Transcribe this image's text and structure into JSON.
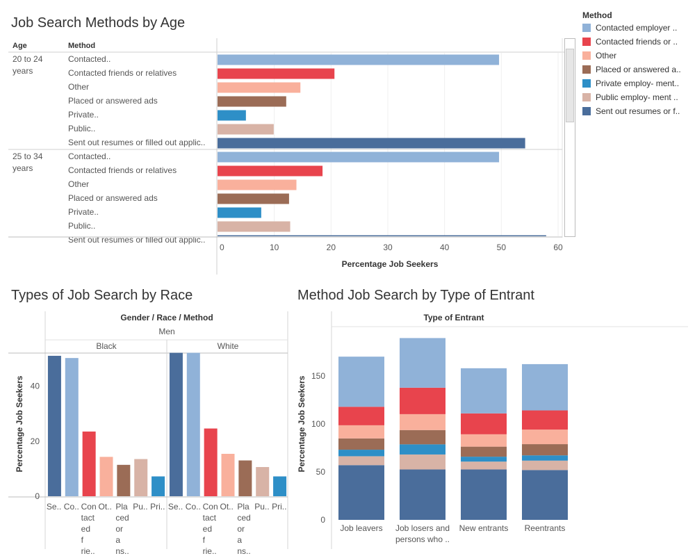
{
  "dashboard": {
    "titles": {
      "age_chart": "Job Search Methods by Age",
      "race_chart": "Types of Job Search by Race",
      "entrant_chart": "Method Job Search by Type of Entrant"
    }
  },
  "legend": {
    "title": "Method",
    "items": [
      {
        "label": "Contacted employer ..",
        "color": "#90b2d8"
      },
      {
        "label": "Contacted friends or ..",
        "color": "#e8444d"
      },
      {
        "label": "Other",
        "color": "#f9b09c"
      },
      {
        "label": "Placed or answered a..",
        "color": "#9b6c56"
      },
      {
        "label": "Private employ- ment..",
        "color": "#2e8fc7"
      },
      {
        "label": "Public employ- ment ..",
        "color": "#d8b3a6"
      },
      {
        "label": "Sent out resumes or f..",
        "color": "#4a6d9b"
      }
    ]
  },
  "chart_data": [
    {
      "type": "bar",
      "orientation": "horizontal",
      "title": "Job Search Methods by Age",
      "column_headers": {
        "age": "Age",
        "method": "Method"
      },
      "xlabel": "Percentage Job Seekers",
      "xlim": [
        0,
        60
      ],
      "xticks": [
        0,
        10,
        20,
        30,
        40,
        50,
        60
      ],
      "groups": [
        {
          "label_line1": "20 to 24",
          "label_line2": "years",
          "rows": [
            {
              "method": "Contacted..",
              "value": 49.6,
              "color": "#90b2d8"
            },
            {
              "method": "Contacted friends or relatives",
              "value": 20.6,
              "color": "#e8444d"
            },
            {
              "method": "Other",
              "value": 14.6,
              "color": "#f9b09c"
            },
            {
              "method": "Placed or answered ads",
              "value": 12.1,
              "color": "#9b6c56"
            },
            {
              "method": "Private..",
              "value": 5.0,
              "color": "#2e8fc7"
            },
            {
              "method": "Public..",
              "value": 9.9,
              "color": "#d8b3a6"
            },
            {
              "method": "Sent out resumes or filled out applic..",
              "value": 54.2,
              "color": "#4a6d9b"
            }
          ]
        },
        {
          "label_line1": "25 to 34",
          "label_line2": "years",
          "rows": [
            {
              "method": "Contacted..",
              "value": 49.6,
              "color": "#90b2d8"
            },
            {
              "method": "Contacted friends or relatives",
              "value": 18.5,
              "color": "#e8444d"
            },
            {
              "method": "Other",
              "value": 13.9,
              "color": "#f9b09c"
            },
            {
              "method": "Placed or answered ads",
              "value": 12.6,
              "color": "#9b6c56"
            },
            {
              "method": "Private..",
              "value": 7.7,
              "color": "#2e8fc7"
            },
            {
              "method": "Public..",
              "value": 12.8,
              "color": "#d8b3a6"
            },
            {
              "method": "Sent out resumes or filled out applic..",
              "value": 57.9,
              "color": "#4a6d9b"
            }
          ]
        }
      ]
    },
    {
      "type": "bar",
      "orientation": "vertical",
      "title": "Types of Job Search by Race",
      "header": "Gender / Race / Method",
      "gender": "Men",
      "ylabel": "Percentage Job Seekers",
      "ylim": [
        0,
        52
      ],
      "yticks": [
        0,
        20,
        40
      ],
      "panels": [
        {
          "race": "Black",
          "bars": [
            {
              "label": "Se..",
              "value": 51.0,
              "color": "#4a6d9b"
            },
            {
              "label": "Co..",
              "value": 50.2,
              "color": "#90b2d8"
            },
            {
              "label": "Con tact ed f rie..",
              "value": 23.5,
              "color": "#e8444d"
            },
            {
              "label": "Ot..",
              "value": 14.3,
              "color": "#f9b09c"
            },
            {
              "label": "Pla ced or a ns..",
              "value": 11.4,
              "color": "#9b6c56"
            },
            {
              "label": "Pu..",
              "value": 13.5,
              "color": "#d8b3a6"
            },
            {
              "label": "Pri..",
              "value": 7.2,
              "color": "#2e8fc7"
            }
          ]
        },
        {
          "race": "White",
          "bars": [
            {
              "label": "Se..",
              "value": 52.1,
              "color": "#4a6d9b"
            },
            {
              "label": "Co..",
              "value": 52.1,
              "color": "#90b2d8"
            },
            {
              "label": "Con tact ed f rie..",
              "value": 24.6,
              "color": "#e8444d"
            },
            {
              "label": "Ot..",
              "value": 15.4,
              "color": "#f9b09c"
            },
            {
              "label": "Pla ced or a ns..",
              "value": 13.0,
              "color": "#9b6c56"
            },
            {
              "label": "Pu..",
              "value": 10.6,
              "color": "#d8b3a6"
            },
            {
              "label": "Pri..",
              "value": 7.2,
              "color": "#2e8fc7"
            }
          ]
        }
      ]
    },
    {
      "type": "bar",
      "stacked": true,
      "title": "Method Job Search by Type of Entrant",
      "header": "Type of Entrant",
      "ylabel": "Percentage Job Seekers",
      "ylim": [
        0,
        190
      ],
      "yticks": [
        0,
        50,
        100,
        150
      ],
      "categories": [
        {
          "line1": "Job leavers",
          "line2": ""
        },
        {
          "line1": "Job losers and",
          "line2": "persons who .."
        },
        {
          "line1": "New entrants",
          "line2": ""
        },
        {
          "line1": "Reentrants",
          "line2": ""
        }
      ],
      "series": [
        {
          "name": "Sent out resumes or f..",
          "color": "#4a6d9b",
          "values": [
            57.1,
            52.6,
            52.6,
            52.0
          ]
        },
        {
          "name": "Public employ- ment ..",
          "color": "#d8b3a6",
          "values": [
            9.3,
            15.6,
            8.2,
            9.8
          ]
        },
        {
          "name": "Private employ- ment..",
          "color": "#2e8fc7",
          "values": [
            6.8,
            10.6,
            5.1,
            5.5
          ]
        },
        {
          "name": "Placed or answered a..",
          "color": "#9b6c56",
          "values": [
            11.8,
            14.9,
            10.5,
            11.7
          ]
        },
        {
          "name": "Other",
          "color": "#f9b09c",
          "values": [
            13.7,
            16.6,
            12.9,
            15.2
          ]
        },
        {
          "name": "Contacted friends or ..",
          "color": "#e8444d",
          "values": [
            19.3,
            27.6,
            21.8,
            20.0
          ]
        },
        {
          "name": "Contacted employer ..",
          "color": "#90b2d8",
          "values": [
            52.3,
            51.8,
            47.1,
            48.3
          ]
        }
      ]
    }
  ]
}
